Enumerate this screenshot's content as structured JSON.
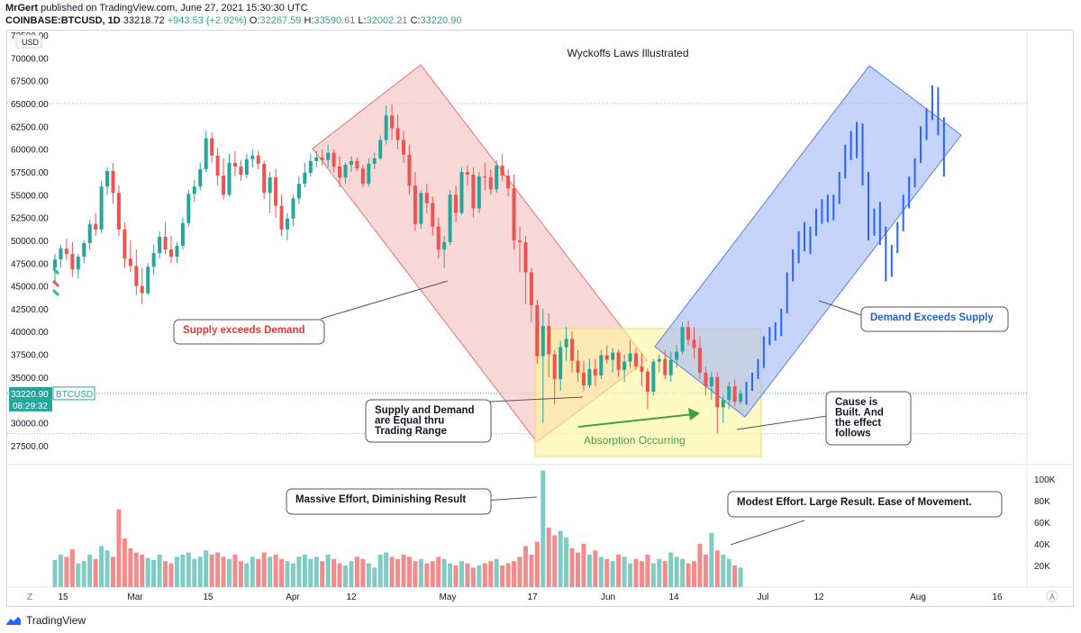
{
  "header": {
    "author": "MrGert",
    "published_text": "published on TradingView.com, June 27, 2021 15:30:30 UTC",
    "symbol": "COINBASE:BTCUSD, 1D",
    "last": "33218.72",
    "change": "+943.53 (+2.92%)",
    "o_label": "O:",
    "o": "32267.59",
    "h_label": "H:",
    "h": "33590.61",
    "l_label": "L:",
    "l": "32002.21",
    "c_label": "C:",
    "c": "33220.90"
  },
  "footer": {
    "brand": "TradingView"
  },
  "chart_data": {
    "type": "candlestick",
    "title": "Wyckoffs Laws Illustrated",
    "price_axis": {
      "unit_label": "USD",
      "range": [
        26000,
        73000
      ],
      "ticks": [
        "72500.00",
        "70000.00",
        "67500.00",
        "65000.00",
        "62500.00",
        "60000.00",
        "57500.00",
        "55000.00",
        "52500.00",
        "50000.00",
        "47500.00",
        "45000.00",
        "42500.00",
        "40000.00",
        "37500.00",
        "35000.00",
        "32500.00",
        "30000.00",
        "27500.00"
      ],
      "last_price_label": "33220.90",
      "last_price_symbol": "BTCUSD",
      "countdown": "08:29:32"
    },
    "volume_axis": {
      "range": [
        0,
        110000
      ],
      "ticks": [
        "100K",
        "80K",
        "60K",
        "40K",
        "20K"
      ]
    },
    "time_axis": {
      "labels": [
        "15",
        "Mar",
        "15",
        "Apr",
        "12",
        "May",
        "17",
        "Jun",
        "14",
        "Jul",
        "12",
        "Aug",
        "16"
      ]
    },
    "candles_ohlc": [
      [
        47000,
        48500,
        45500,
        47900
      ],
      [
        47900,
        49500,
        47000,
        49100
      ],
      [
        49100,
        50200,
        47800,
        48500
      ],
      [
        48500,
        49800,
        46000,
        46800
      ],
      [
        46800,
        48500,
        45800,
        48200
      ],
      [
        48200,
        50000,
        47500,
        49700
      ],
      [
        49700,
        52300,
        49000,
        51800
      ],
      [
        51800,
        53000,
        50500,
        51200
      ],
      [
        51200,
        56500,
        50800,
        55900
      ],
      [
        55900,
        58000,
        55000,
        57600
      ],
      [
        57600,
        58500,
        54000,
        55200
      ],
      [
        55200,
        56000,
        50500,
        51200
      ],
      [
        51200,
        52000,
        47000,
        48000
      ],
      [
        48000,
        50000,
        46500,
        47200
      ],
      [
        47200,
        49000,
        44000,
        45000
      ],
      [
        45000,
        47000,
        43000,
        44200
      ],
      [
        44200,
        47500,
        44000,
        47100
      ],
      [
        47100,
        49500,
        46200,
        48600
      ],
      [
        48600,
        51000,
        48000,
        50400
      ],
      [
        50400,
        52000,
        48500,
        49000
      ],
      [
        49000,
        50500,
        47500,
        48200
      ],
      [
        48200,
        49800,
        47500,
        49400
      ],
      [
        49400,
        52500,
        49000,
        51900
      ],
      [
        51900,
        55500,
        51500,
        55100
      ],
      [
        55100,
        56600,
        54200,
        55900
      ],
      [
        55900,
        58500,
        55500,
        57800
      ],
      [
        57800,
        62000,
        57500,
        61200
      ],
      [
        61200,
        61800,
        58500,
        59300
      ],
      [
        59300,
        60200,
        56000,
        57100
      ],
      [
        57100,
        59000,
        54500,
        55000
      ],
      [
        55000,
        59500,
        54800,
        58500
      ],
      [
        58500,
        59800,
        57000,
        58100
      ],
      [
        58100,
        58800,
        56500,
        57200
      ],
      [
        57200,
        59500,
        56800,
        58900
      ],
      [
        58900,
        60000,
        58000,
        59300
      ],
      [
        59300,
        59800,
        57800,
        58400
      ],
      [
        58400,
        58700,
        54500,
        55200
      ],
      [
        55200,
        57500,
        53000,
        56900
      ],
      [
        56900,
        57800,
        52500,
        53800
      ],
      [
        53800,
        55000,
        50500,
        51200
      ],
      [
        51200,
        53000,
        50000,
        52400
      ],
      [
        52400,
        55000,
        51500,
        54600
      ],
      [
        54600,
        57000,
        54000,
        56200
      ],
      [
        56200,
        58500,
        55800,
        57400
      ],
      [
        57400,
        59500,
        57000,
        58700
      ],
      [
        58700,
        59800,
        58000,
        59100
      ],
      [
        59100,
        60000,
        58200,
        58800
      ],
      [
        58800,
        60500,
        58000,
        59600
      ],
      [
        59600,
        60000,
        57500,
        58100
      ],
      [
        58100,
        59200,
        55800,
        56900
      ],
      [
        56900,
        58500,
        56200,
        58300
      ],
      [
        58300,
        59200,
        57500,
        58700
      ],
      [
        58700,
        59100,
        57600,
        57900
      ],
      [
        57900,
        58300,
        55800,
        56200
      ],
      [
        56200,
        59000,
        55900,
        58400
      ],
      [
        58400,
        59600,
        57800,
        59000
      ],
      [
        59000,
        61500,
        58800,
        61000
      ],
      [
        61000,
        64800,
        60500,
        63700
      ],
      [
        63700,
        64900,
        61000,
        62300
      ],
      [
        62300,
        63800,
        60000,
        61000
      ],
      [
        61000,
        62000,
        58500,
        59400
      ],
      [
        59400,
        60500,
        55000,
        56000
      ],
      [
        56000,
        57500,
        51000,
        51800
      ],
      [
        51800,
        55500,
        51300,
        55200
      ],
      [
        55200,
        56200,
        53000,
        54100
      ],
      [
        54100,
        54800,
        50500,
        51500
      ],
      [
        51500,
        52500,
        48000,
        49000
      ],
      [
        49000,
        50500,
        47000,
        49800
      ],
      [
        49800,
        55500,
        49500,
        55000
      ],
      [
        55000,
        56000,
        52000,
        53000
      ],
      [
        53000,
        58000,
        52800,
        57500
      ],
      [
        57500,
        58200,
        56000,
        57200
      ],
      [
        57200,
        58000,
        52500,
        53500
      ],
      [
        53500,
        57500,
        53000,
        57000
      ],
      [
        57000,
        58500,
        55500,
        56900
      ],
      [
        56900,
        57800,
        55000,
        55600
      ],
      [
        55600,
        58800,
        55200,
        58200
      ],
      [
        58200,
        59500,
        56500,
        57100
      ],
      [
        57100,
        57800,
        54800,
        55700
      ],
      [
        55700,
        57200,
        49000,
        50000
      ],
      [
        50000,
        51500,
        46500,
        49800
      ],
      [
        49800,
        50500,
        43000,
        46500
      ],
      [
        46500,
        47000,
        41000,
        42900
      ],
      [
        42900,
        43500,
        36500,
        37300
      ],
      [
        37300,
        42500,
        30000,
        40600
      ],
      [
        40600,
        42000,
        35000,
        37500
      ],
      [
        37500,
        38000,
        32000,
        34800
      ],
      [
        34800,
        39000,
        33500,
        38300
      ],
      [
        38300,
        40500,
        36800,
        39200
      ],
      [
        39200,
        40000,
        35500,
        36800
      ],
      [
        36800,
        38000,
        34500,
        35500
      ],
      [
        35500,
        36800,
        33500,
        34100
      ],
      [
        34100,
        37000,
        33800,
        35900
      ],
      [
        35900,
        37000,
        34000,
        35200
      ],
      [
        35200,
        38000,
        34800,
        37400
      ],
      [
        37400,
        38500,
        36500,
        36900
      ],
      [
        36900,
        38200,
        35500,
        37700
      ],
      [
        37700,
        38000,
        35000,
        35800
      ],
      [
        35800,
        37500,
        34500,
        36700
      ],
      [
        36700,
        39000,
        36000,
        37600
      ],
      [
        37600,
        38200,
        35800,
        36200
      ],
      [
        36200,
        37600,
        34000,
        35600
      ],
      [
        35600,
        36000,
        31500,
        33400
      ],
      [
        33400,
        37000,
        33000,
        36700
      ],
      [
        36700,
        37500,
        35500,
        37000
      ],
      [
        37000,
        38000,
        34800,
        35200
      ],
      [
        35200,
        37800,
        34500,
        36900
      ],
      [
        36900,
        38500,
        36000,
        37800
      ],
      [
        37800,
        41000,
        37500,
        40500
      ],
      [
        40500,
        41200,
        38500,
        39100
      ],
      [
        39100,
        40500,
        37000,
        38200
      ],
      [
        38200,
        39500,
        34800,
        35500
      ],
      [
        35500,
        36200,
        33000,
        34000
      ],
      [
        34000,
        35600,
        32500,
        35000
      ],
      [
        35000,
        35500,
        28800,
        31700
      ],
      [
        31700,
        33000,
        30000,
        32500
      ],
      [
        32500,
        34500,
        31500,
        34000
      ],
      [
        34000,
        34800,
        31800,
        32300
      ],
      [
        32300,
        33600,
        32000,
        33220
      ]
    ],
    "bars_ohlc_projection": [
      [
        33220,
        34500,
        32000,
        33800
      ],
      [
        33800,
        35500,
        33500,
        35200
      ],
      [
        35200,
        37000,
        34800,
        36600
      ],
      [
        36600,
        39500,
        36000,
        39200
      ],
      [
        39200,
        40500,
        38500,
        40100
      ],
      [
        40100,
        41000,
        39000,
        39800
      ],
      [
        39800,
        42500,
        39500,
        42200
      ],
      [
        42200,
        46500,
        42000,
        46000
      ],
      [
        46000,
        49000,
        45500,
        48500
      ],
      [
        48500,
        51000,
        47500,
        50300
      ],
      [
        50300,
        52000,
        48800,
        49500
      ],
      [
        49500,
        51500,
        48500,
        51200
      ],
      [
        51200,
        53500,
        50500,
        52800
      ],
      [
        52800,
        54500,
        51800,
        53900
      ],
      [
        53900,
        55000,
        52000,
        52600
      ],
      [
        52600,
        55000,
        52200,
        54600
      ],
      [
        54600,
        57500,
        54000,
        57200
      ],
      [
        57200,
        60500,
        56800,
        60100
      ],
      [
        60100,
        62000,
        58800,
        59300
      ],
      [
        59300,
        63000,
        59000,
        62600
      ],
      [
        62600,
        62800,
        56000,
        56600
      ],
      [
        56600,
        57500,
        50000,
        50800
      ],
      [
        50800,
        53500,
        50500,
        53100
      ],
      [
        53100,
        54200,
        49500,
        50100
      ],
      [
        50100,
        51500,
        45500,
        46300
      ],
      [
        46300,
        49500,
        46000,
        49000
      ],
      [
        49000,
        52000,
        48600,
        51700
      ],
      [
        51700,
        55000,
        51000,
        54600
      ],
      [
        54600,
        57000,
        53500,
        56400
      ],
      [
        56400,
        59000,
        55800,
        58700
      ],
      [
        58700,
        62500,
        58500,
        62100
      ],
      [
        62100,
        64500,
        61000,
        63800
      ],
      [
        63800,
        67000,
        63200,
        66500
      ],
      [
        66500,
        66800,
        61500,
        62200
      ],
      [
        62200,
        63500,
        57000,
        57800
      ]
    ],
    "volume": [
      25000,
      30000,
      28000,
      35000,
      22000,
      24000,
      30000,
      26000,
      38000,
      34000,
      28000,
      72000,
      45000,
      36000,
      32000,
      30000,
      27000,
      25000,
      30000,
      24000,
      22000,
      28000,
      30000,
      32000,
      26000,
      28000,
      34000,
      30000,
      32000,
      28000,
      26000,
      30000,
      24000,
      22000,
      28000,
      26000,
      32000,
      28000,
      30000,
      26000,
      24000,
      22000,
      28000,
      30000,
      26000,
      28000,
      24000,
      30000,
      26000,
      22000,
      20000,
      24000,
      28000,
      26000,
      22000,
      18000,
      30000,
      32000,
      28000,
      26000,
      30000,
      28000,
      24000,
      26000,
      22000,
      24000,
      28000,
      26000,
      22000,
      20000,
      24000,
      22000,
      18000,
      20000,
      22000,
      24000,
      26000,
      20000,
      22000,
      24000,
      28000,
      38000,
      30000,
      42000,
      108000,
      55000,
      48000,
      52000,
      46000,
      36000,
      32000,
      40000,
      30000,
      34000,
      28000,
      26000,
      24000,
      30000,
      28000,
      22000,
      26000,
      24000,
      30000,
      22000,
      26000,
      24000,
      32000,
      28000,
      26000,
      22000,
      24000,
      40000,
      30000,
      50000,
      34000,
      30000,
      26000,
      20000,
      18000
    ],
    "annotations": {
      "supply_exceeds": "Supply exceeds Demand",
      "supply_equal": [
        "Supply and Demand",
        "are Equal thru",
        "Trading Range"
      ],
      "absorption": "Absorption Occurring",
      "cause_built": [
        "Cause is",
        "Built. And",
        "the effect",
        "follows"
      ],
      "demand_exceeds": "Demand Exceeds Supply",
      "massive_effort": "Massive Effort, Diminishing Result",
      "modest_effort": "Modest Effort. Large Result. Ease of Movement."
    },
    "colors": {
      "up": "#26a69a",
      "down": "#ef5350",
      "projection": "#2962ff",
      "red_channel": "#f8c8c8",
      "blue_channel": "#a7bdf6",
      "range_box": "#fff59d"
    }
  }
}
